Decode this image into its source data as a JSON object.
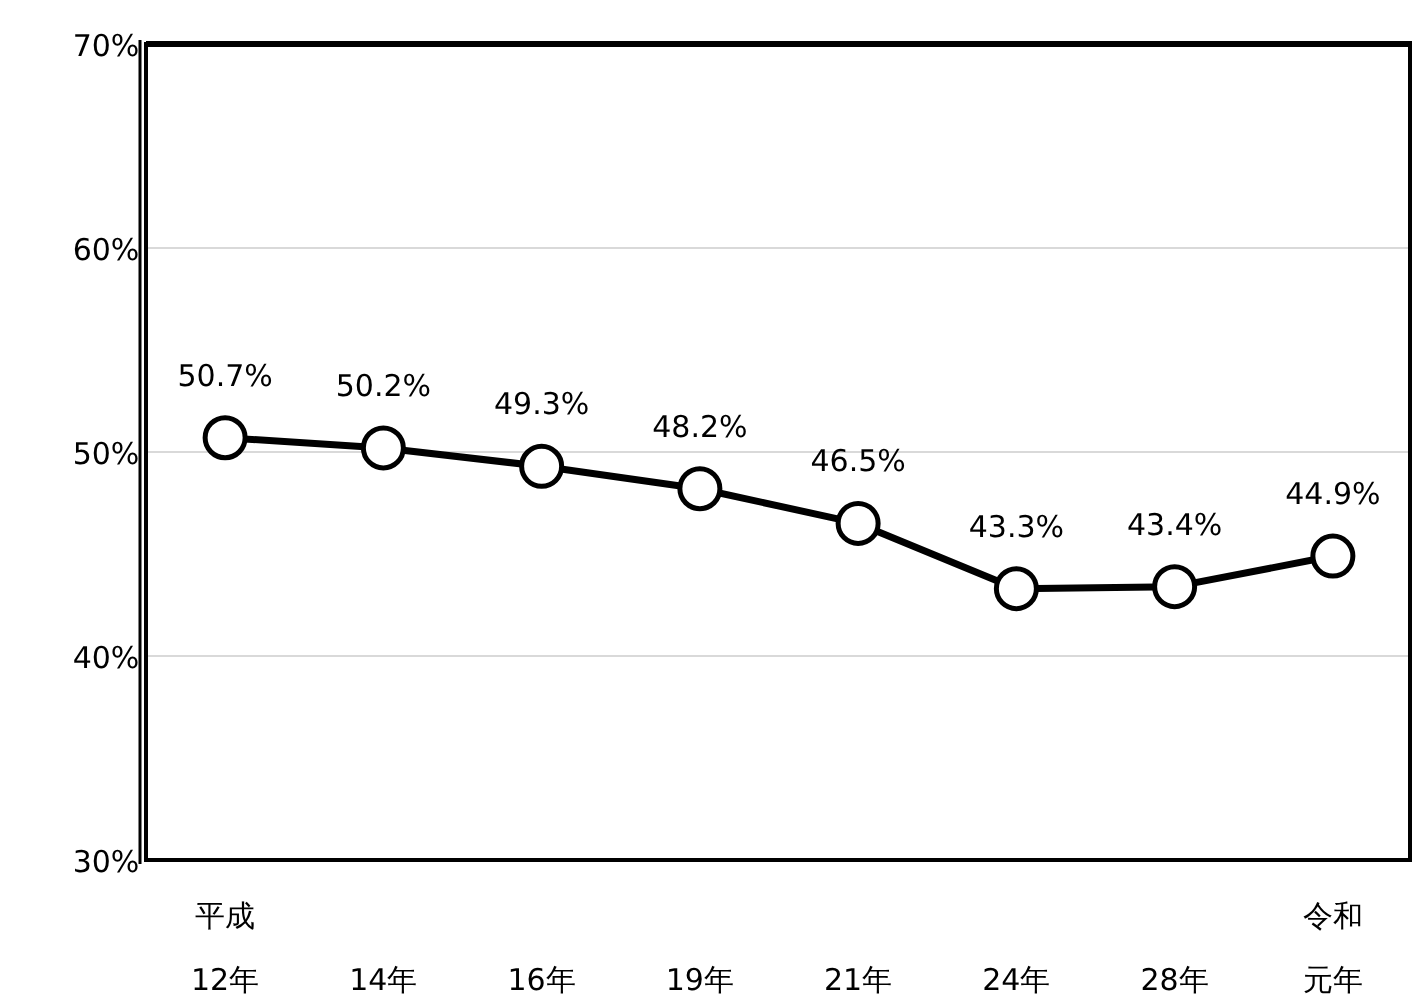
{
  "chart_data": {
    "type": "line",
    "categories": [
      "平成12年",
      "14年",
      "16年",
      "19年",
      "21年",
      "24年",
      "28年",
      "令和元年"
    ],
    "series": [
      {
        "color": "#000000",
        "values": [
          50.7,
          50.2,
          49.3,
          48.2,
          46.5,
          43.3,
          43.4,
          44.9
        ],
        "value_labels": [
          "50.7%",
          "50.2%",
          "49.3%",
          "48.2%",
          "46.5%",
          "43.3%",
          "43.4%",
          "44.9%"
        ]
      }
    ],
    "ylim": [
      30,
      70
    ],
    "yticks": [
      {
        "value": 30,
        "label": "30%"
      },
      {
        "value": 40,
        "label": "40%"
      },
      {
        "value": 50,
        "label": "50%"
      },
      {
        "value": 60,
        "label": "60%"
      },
      {
        "value": 70,
        "label": "70%"
      }
    ],
    "grid": "y",
    "marker": "circle",
    "line_style": "solid"
  }
}
